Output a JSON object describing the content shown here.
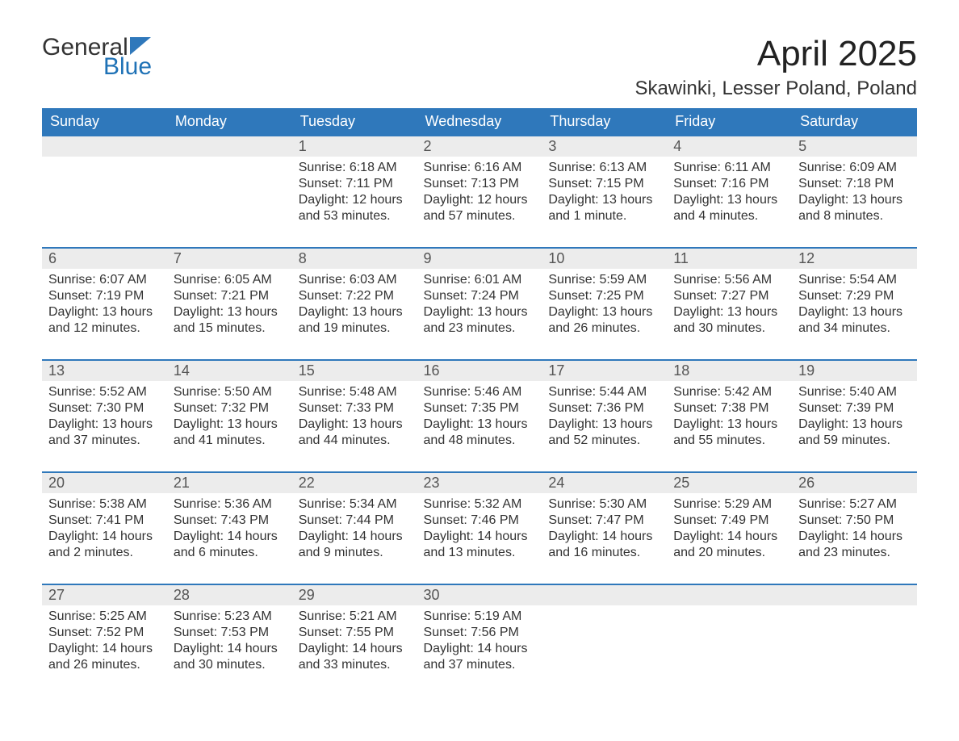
{
  "colors": {
    "header_bg": "#2f78bb",
    "header_text": "#ffffff",
    "daynum_bg": "#ececec",
    "daynum_border_top": "#2f78bb",
    "text": "#333333",
    "logo_text1": "#333333",
    "logo_text2": "#1f72b6",
    "logo_triangle": "#2f78bb",
    "page_bg": "#ffffff"
  },
  "typography": {
    "month_title_fontsize": 44,
    "location_fontsize": 24,
    "header_fontsize": 18,
    "daynum_fontsize": 18,
    "body_fontsize": 16,
    "logo_fontsize": 30,
    "font_family": "Segoe UI, Arial, Helvetica, sans-serif"
  },
  "logo": {
    "line1": "General",
    "line2": "Blue"
  },
  "title": "April 2025",
  "location": "Skawinki, Lesser Poland, Poland",
  "weekday_headers": [
    "Sunday",
    "Monday",
    "Tuesday",
    "Wednesday",
    "Thursday",
    "Friday",
    "Saturday"
  ],
  "calendar": {
    "type": "table",
    "columns": 7,
    "rows": [
      [
        {
          "date": "",
          "sunrise": "",
          "sunset": "",
          "daylight": ""
        },
        {
          "date": "",
          "sunrise": "",
          "sunset": "",
          "daylight": ""
        },
        {
          "date": "1",
          "sunrise": "Sunrise: 6:18 AM",
          "sunset": "Sunset: 7:11 PM",
          "daylight": "Daylight: 12 hours and 53 minutes."
        },
        {
          "date": "2",
          "sunrise": "Sunrise: 6:16 AM",
          "sunset": "Sunset: 7:13 PM",
          "daylight": "Daylight: 12 hours and 57 minutes."
        },
        {
          "date": "3",
          "sunrise": "Sunrise: 6:13 AM",
          "sunset": "Sunset: 7:15 PM",
          "daylight": "Daylight: 13 hours and 1 minute."
        },
        {
          "date": "4",
          "sunrise": "Sunrise: 6:11 AM",
          "sunset": "Sunset: 7:16 PM",
          "daylight": "Daylight: 13 hours and 4 minutes."
        },
        {
          "date": "5",
          "sunrise": "Sunrise: 6:09 AM",
          "sunset": "Sunset: 7:18 PM",
          "daylight": "Daylight: 13 hours and 8 minutes."
        }
      ],
      [
        {
          "date": "6",
          "sunrise": "Sunrise: 6:07 AM",
          "sunset": "Sunset: 7:19 PM",
          "daylight": "Daylight: 13 hours and 12 minutes."
        },
        {
          "date": "7",
          "sunrise": "Sunrise: 6:05 AM",
          "sunset": "Sunset: 7:21 PM",
          "daylight": "Daylight: 13 hours and 15 minutes."
        },
        {
          "date": "8",
          "sunrise": "Sunrise: 6:03 AM",
          "sunset": "Sunset: 7:22 PM",
          "daylight": "Daylight: 13 hours and 19 minutes."
        },
        {
          "date": "9",
          "sunrise": "Sunrise: 6:01 AM",
          "sunset": "Sunset: 7:24 PM",
          "daylight": "Daylight: 13 hours and 23 minutes."
        },
        {
          "date": "10",
          "sunrise": "Sunrise: 5:59 AM",
          "sunset": "Sunset: 7:25 PM",
          "daylight": "Daylight: 13 hours and 26 minutes."
        },
        {
          "date": "11",
          "sunrise": "Sunrise: 5:56 AM",
          "sunset": "Sunset: 7:27 PM",
          "daylight": "Daylight: 13 hours and 30 minutes."
        },
        {
          "date": "12",
          "sunrise": "Sunrise: 5:54 AM",
          "sunset": "Sunset: 7:29 PM",
          "daylight": "Daylight: 13 hours and 34 minutes."
        }
      ],
      [
        {
          "date": "13",
          "sunrise": "Sunrise: 5:52 AM",
          "sunset": "Sunset: 7:30 PM",
          "daylight": "Daylight: 13 hours and 37 minutes."
        },
        {
          "date": "14",
          "sunrise": "Sunrise: 5:50 AM",
          "sunset": "Sunset: 7:32 PM",
          "daylight": "Daylight: 13 hours and 41 minutes."
        },
        {
          "date": "15",
          "sunrise": "Sunrise: 5:48 AM",
          "sunset": "Sunset: 7:33 PM",
          "daylight": "Daylight: 13 hours and 44 minutes."
        },
        {
          "date": "16",
          "sunrise": "Sunrise: 5:46 AM",
          "sunset": "Sunset: 7:35 PM",
          "daylight": "Daylight: 13 hours and 48 minutes."
        },
        {
          "date": "17",
          "sunrise": "Sunrise: 5:44 AM",
          "sunset": "Sunset: 7:36 PM",
          "daylight": "Daylight: 13 hours and 52 minutes."
        },
        {
          "date": "18",
          "sunrise": "Sunrise: 5:42 AM",
          "sunset": "Sunset: 7:38 PM",
          "daylight": "Daylight: 13 hours and 55 minutes."
        },
        {
          "date": "19",
          "sunrise": "Sunrise: 5:40 AM",
          "sunset": "Sunset: 7:39 PM",
          "daylight": "Daylight: 13 hours and 59 minutes."
        }
      ],
      [
        {
          "date": "20",
          "sunrise": "Sunrise: 5:38 AM",
          "sunset": "Sunset: 7:41 PM",
          "daylight": "Daylight: 14 hours and 2 minutes."
        },
        {
          "date": "21",
          "sunrise": "Sunrise: 5:36 AM",
          "sunset": "Sunset: 7:43 PM",
          "daylight": "Daylight: 14 hours and 6 minutes."
        },
        {
          "date": "22",
          "sunrise": "Sunrise: 5:34 AM",
          "sunset": "Sunset: 7:44 PM",
          "daylight": "Daylight: 14 hours and 9 minutes."
        },
        {
          "date": "23",
          "sunrise": "Sunrise: 5:32 AM",
          "sunset": "Sunset: 7:46 PM",
          "daylight": "Daylight: 14 hours and 13 minutes."
        },
        {
          "date": "24",
          "sunrise": "Sunrise: 5:30 AM",
          "sunset": "Sunset: 7:47 PM",
          "daylight": "Daylight: 14 hours and 16 minutes."
        },
        {
          "date": "25",
          "sunrise": "Sunrise: 5:29 AM",
          "sunset": "Sunset: 7:49 PM",
          "daylight": "Daylight: 14 hours and 20 minutes."
        },
        {
          "date": "26",
          "sunrise": "Sunrise: 5:27 AM",
          "sunset": "Sunset: 7:50 PM",
          "daylight": "Daylight: 14 hours and 23 minutes."
        }
      ],
      [
        {
          "date": "27",
          "sunrise": "Sunrise: 5:25 AM",
          "sunset": "Sunset: 7:52 PM",
          "daylight": "Daylight: 14 hours and 26 minutes."
        },
        {
          "date": "28",
          "sunrise": "Sunrise: 5:23 AM",
          "sunset": "Sunset: 7:53 PM",
          "daylight": "Daylight: 14 hours and 30 minutes."
        },
        {
          "date": "29",
          "sunrise": "Sunrise: 5:21 AM",
          "sunset": "Sunset: 7:55 PM",
          "daylight": "Daylight: 14 hours and 33 minutes."
        },
        {
          "date": "30",
          "sunrise": "Sunrise: 5:19 AM",
          "sunset": "Sunset: 7:56 PM",
          "daylight": "Daylight: 14 hours and 37 minutes."
        },
        {
          "date": "",
          "sunrise": "",
          "sunset": "",
          "daylight": ""
        },
        {
          "date": "",
          "sunrise": "",
          "sunset": "",
          "daylight": ""
        },
        {
          "date": "",
          "sunrise": "",
          "sunset": "",
          "daylight": ""
        }
      ]
    ]
  }
}
